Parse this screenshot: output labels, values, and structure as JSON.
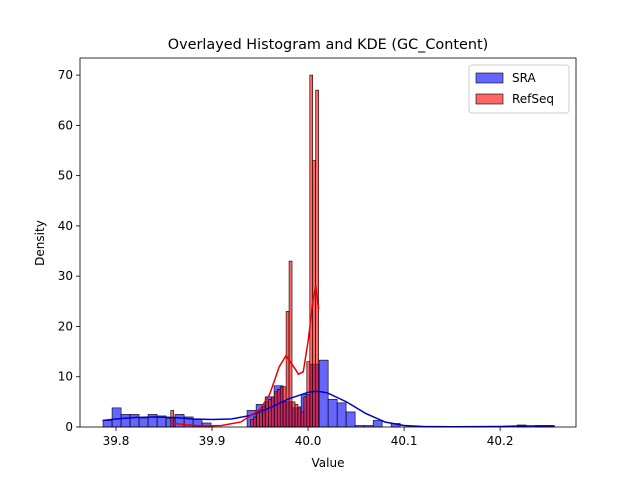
{
  "chart_data": {
    "type": "histogram-kde",
    "title": "Overlayed Histogram and KDE (GC_Content)",
    "x_label": "Value",
    "y_label": "Density",
    "xlim": [
      39.7625,
      40.279
    ],
    "ylim": [
      0,
      73.4
    ],
    "xticks": [
      39.8,
      39.9,
      {
        "value": 40,
        "label": "40.0"
      },
      40.1,
      40.2
    ],
    "yticks": [
      0,
      10,
      20,
      30,
      40,
      50,
      60,
      70
    ],
    "legend": "upper right",
    "series": [
      {
        "name": "SRA",
        "color": "#0000ff",
        "line_color": "#0000cc",
        "bins": [
          39.7865,
          39.7959,
          39.8053,
          39.8146,
          39.824,
          39.8334,
          39.8428,
          39.8521,
          39.8615,
          39.8709,
          39.8803,
          39.8896,
          39.899,
          39.9084,
          39.9178,
          39.9271,
          39.9365,
          39.9459,
          39.9553,
          39.9646,
          39.974,
          39.9834,
          39.9928,
          40.0021,
          40.0115,
          40.0209,
          40.0303,
          40.0396,
          40.049,
          40.0584,
          40.0678,
          40.0771,
          40.0865,
          40.0959,
          40.1053,
          40.1146,
          40.124,
          40.1334,
          40.1428,
          40.1521,
          40.1615,
          40.1709,
          40.1803,
          40.1896,
          40.199,
          40.2084,
          40.2178,
          40.2271,
          40.2365,
          40.2459,
          40.2553
        ],
        "values": [
          1.3,
          3.8,
          2.5,
          2.5,
          1.8,
          2.5,
          2.2,
          1.7,
          2.5,
          2.0,
          1.5,
          0.8,
          0,
          0,
          0,
          0,
          3.3,
          4.5,
          6.0,
          8.2,
          5.0,
          3.8,
          6.5,
          12.5,
          13.3,
          5.5,
          4.8,
          3.0,
          0.3,
          0.3,
          1.3,
          0,
          0.7,
          0,
          0,
          0,
          0,
          0,
          0,
          0,
          0,
          0,
          0,
          0,
          0,
          0,
          0.4,
          0,
          0.3,
          0.3
        ],
        "kde_x": [
          39.786,
          39.8,
          39.82,
          39.84,
          39.86,
          39.88,
          39.9,
          39.92,
          39.94,
          39.96,
          39.98,
          40.0,
          40.01,
          40.02,
          40.04,
          40.06,
          40.08,
          40.1,
          40.12,
          40.15,
          40.2,
          40.22,
          40.24,
          40.257
        ],
        "kde_y": [
          1.3,
          1.6,
          1.9,
          2.0,
          1.9,
          1.6,
          1.5,
          1.6,
          2.3,
          3.8,
          5.6,
          6.9,
          7.1,
          6.8,
          5.0,
          2.7,
          1.0,
          0.3,
          0.1,
          0.05,
          0.1,
          0.2,
          0.2,
          0.2
        ]
      },
      {
        "name": "RefSeq",
        "color": "#ff0000",
        "line_color": "#ee0000",
        "bins": [
          39.857,
          39.8601,
          39.8632,
          39.8662,
          39.8693,
          39.8724,
          39.8755,
          39.8786,
          39.8816,
          39.8847,
          39.8878,
          39.8909,
          39.894,
          39.897,
          39.9001,
          39.9032,
          39.9063,
          39.9094,
          39.9124,
          39.9155,
          39.9186,
          39.9217,
          39.9248,
          39.9278,
          39.9309,
          39.934,
          39.9371,
          39.9402,
          39.9432,
          39.9463,
          39.9494,
          39.9525,
          39.9556,
          39.9586,
          39.9617,
          39.9648,
          39.9679,
          39.971,
          39.974,
          39.9771,
          39.9802,
          39.9833,
          39.9864,
          39.9894,
          39.9925,
          39.9956,
          39.9987,
          40.0018,
          40.0048,
          40.0079,
          40.011
        ],
        "values": [
          3.3,
          0,
          0,
          0,
          0,
          0,
          0,
          0,
          0,
          0,
          0,
          0,
          0,
          0,
          0,
          0,
          0,
          0,
          0,
          0,
          0,
          0,
          0,
          0,
          0,
          0,
          0,
          1.5,
          2,
          3,
          3.5,
          4,
          5,
          5.5,
          6,
          7,
          7.5,
          8,
          8,
          23,
          33,
          5,
          4.5,
          4,
          3,
          6,
          13,
          70,
          53,
          67
        ],
        "kde_x": [
          39.857,
          39.87,
          39.89,
          39.91,
          39.93,
          39.95,
          39.96,
          39.97,
          39.977,
          39.985,
          39.99,
          39.995,
          40.0,
          40.005,
          40.008,
          40.011
        ],
        "kde_y": [
          0.8,
          0.5,
          0.2,
          0.3,
          1.0,
          3.5,
          6.5,
          12,
          14.2,
          12,
          10.5,
          11,
          17,
          25,
          28,
          23.5
        ]
      }
    ]
  }
}
